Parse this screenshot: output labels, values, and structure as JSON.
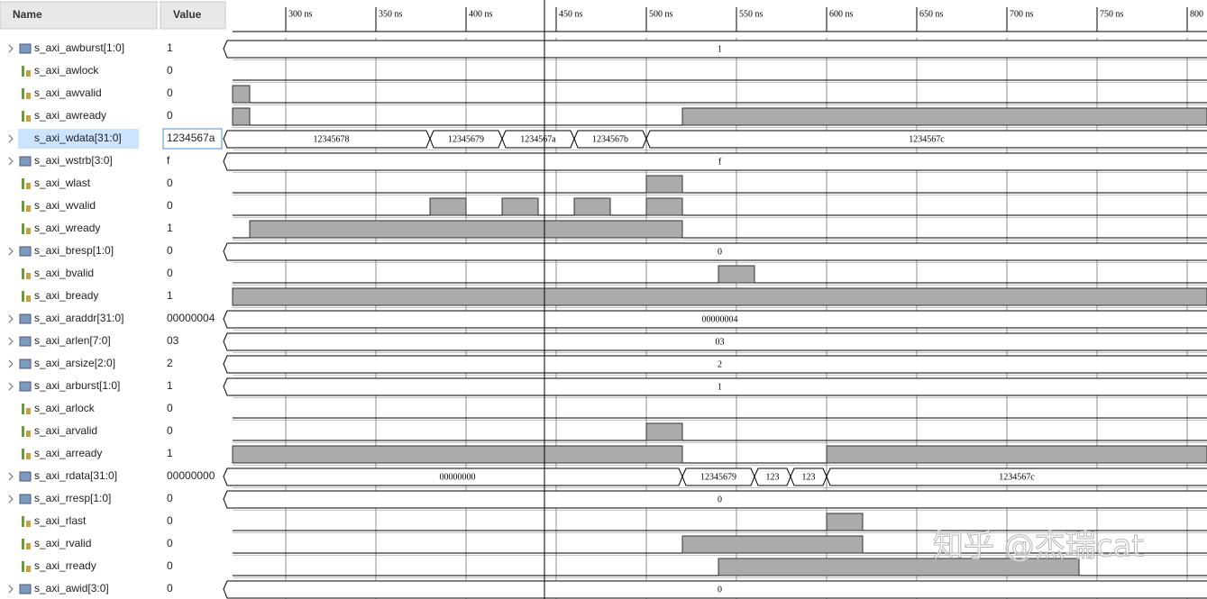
{
  "header": {
    "name": "Name",
    "value": "Value"
  },
  "timeline": {
    "xlim": [
      270.5,
      811
    ],
    "ticks": [
      {
        "value": 300,
        "label": "300 ns"
      },
      {
        "value": 350,
        "label": "350 ns"
      },
      {
        "value": 400,
        "label": "400 ns"
      },
      {
        "value": 450,
        "label": "450 ns"
      },
      {
        "value": 500,
        "label": "500 ns"
      },
      {
        "value": 550,
        "label": "550 ns"
      },
      {
        "value": 600,
        "label": "600 ns"
      },
      {
        "value": 650,
        "label": "650 ns"
      },
      {
        "value": 700,
        "label": "700 ns"
      },
      {
        "value": 750,
        "label": "750 ns"
      },
      {
        "value": 800,
        "label": "800"
      }
    ],
    "cursor": 443.5
  },
  "signals": [
    {
      "name": "s_axi_awburst[1:0]",
      "value": "1",
      "kind": "bus",
      "segments": [
        {
          "start": null,
          "label": "1"
        }
      ]
    },
    {
      "name": "s_axi_awlock",
      "value": "0",
      "kind": "bit",
      "high": []
    },
    {
      "name": "s_axi_awvalid",
      "value": "0",
      "kind": "bit",
      "high": [
        [
          null,
          280
        ]
      ]
    },
    {
      "name": "s_axi_awready",
      "value": "0",
      "kind": "bit",
      "high": [
        [
          null,
          280
        ],
        [
          520,
          null
        ]
      ]
    },
    {
      "name": "s_axi_wdata[31:0]",
      "value": "1234567a",
      "kind": "bus",
      "selected": true,
      "segments": [
        {
          "start": null,
          "label": "12345678"
        },
        {
          "start": 380,
          "label": "12345679"
        },
        {
          "start": 420,
          "label": "1234567a"
        },
        {
          "start": 460,
          "label": "1234567b"
        },
        {
          "start": 500,
          "label": "1234567c"
        }
      ]
    },
    {
      "name": "s_axi_wstrb[3:0]",
      "value": "f",
      "kind": "bus",
      "segments": [
        {
          "start": null,
          "label": "f"
        }
      ]
    },
    {
      "name": "s_axi_wlast",
      "value": "0",
      "kind": "bit",
      "high": [
        [
          500,
          520
        ]
      ]
    },
    {
      "name": "s_axi_wvalid",
      "value": "0",
      "kind": "bit",
      "high": [
        [
          380,
          400
        ],
        [
          420,
          440
        ],
        [
          460,
          480
        ],
        [
          500,
          520
        ]
      ]
    },
    {
      "name": "s_axi_wready",
      "value": "1",
      "kind": "bit",
      "high": [
        [
          280,
          520
        ]
      ]
    },
    {
      "name": "s_axi_bresp[1:0]",
      "value": "0",
      "kind": "bus",
      "segments": [
        {
          "start": null,
          "label": "0"
        }
      ]
    },
    {
      "name": "s_axi_bvalid",
      "value": "0",
      "kind": "bit",
      "high": [
        [
          540,
          560
        ]
      ]
    },
    {
      "name": "s_axi_bready",
      "value": "1",
      "kind": "bit",
      "high": [
        [
          null,
          null
        ]
      ]
    },
    {
      "name": "s_axi_araddr[31:0]",
      "value": "00000004",
      "kind": "bus",
      "segments": [
        {
          "start": null,
          "label": "00000004"
        }
      ]
    },
    {
      "name": "s_axi_arlen[7:0]",
      "value": "03",
      "kind": "bus",
      "segments": [
        {
          "start": null,
          "label": "03"
        }
      ]
    },
    {
      "name": "s_axi_arsize[2:0]",
      "value": "2",
      "kind": "bus",
      "segments": [
        {
          "start": null,
          "label": "2"
        }
      ]
    },
    {
      "name": "s_axi_arburst[1:0]",
      "value": "1",
      "kind": "bus",
      "segments": [
        {
          "start": null,
          "label": "1"
        }
      ]
    },
    {
      "name": "s_axi_arlock",
      "value": "0",
      "kind": "bit",
      "high": []
    },
    {
      "name": "s_axi_arvalid",
      "value": "0",
      "kind": "bit",
      "high": [
        [
          500,
          520
        ]
      ]
    },
    {
      "name": "s_axi_arready",
      "value": "1",
      "kind": "bit",
      "high": [
        [
          null,
          520
        ],
        [
          600,
          null
        ]
      ]
    },
    {
      "name": "s_axi_rdata[31:0]",
      "value": "00000000",
      "kind": "bus",
      "segments": [
        {
          "start": null,
          "label": "00000000"
        },
        {
          "start": 520,
          "label": "12345679"
        },
        {
          "start": 560,
          "label": "123"
        },
        {
          "start": 580,
          "label": "123"
        },
        {
          "start": 600,
          "label": "1234567c"
        }
      ]
    },
    {
      "name": "s_axi_rresp[1:0]",
      "value": "0",
      "kind": "bus",
      "segments": [
        {
          "start": null,
          "label": "0"
        }
      ]
    },
    {
      "name": "s_axi_rlast",
      "value": "0",
      "kind": "bit",
      "high": [
        [
          600,
          620
        ]
      ]
    },
    {
      "name": "s_axi_rvalid",
      "value": "0",
      "kind": "bit",
      "high": [
        [
          520,
          620
        ]
      ]
    },
    {
      "name": "s_axi_rready",
      "value": "0",
      "kind": "bit",
      "high": [
        [
          540,
          740
        ]
      ]
    },
    {
      "name": "s_axi_awid[3:0]",
      "value": "0",
      "kind": "bus",
      "segments": [
        {
          "start": null,
          "label": "0"
        }
      ]
    }
  ],
  "watermark": "知乎 @杰瑞cat"
}
